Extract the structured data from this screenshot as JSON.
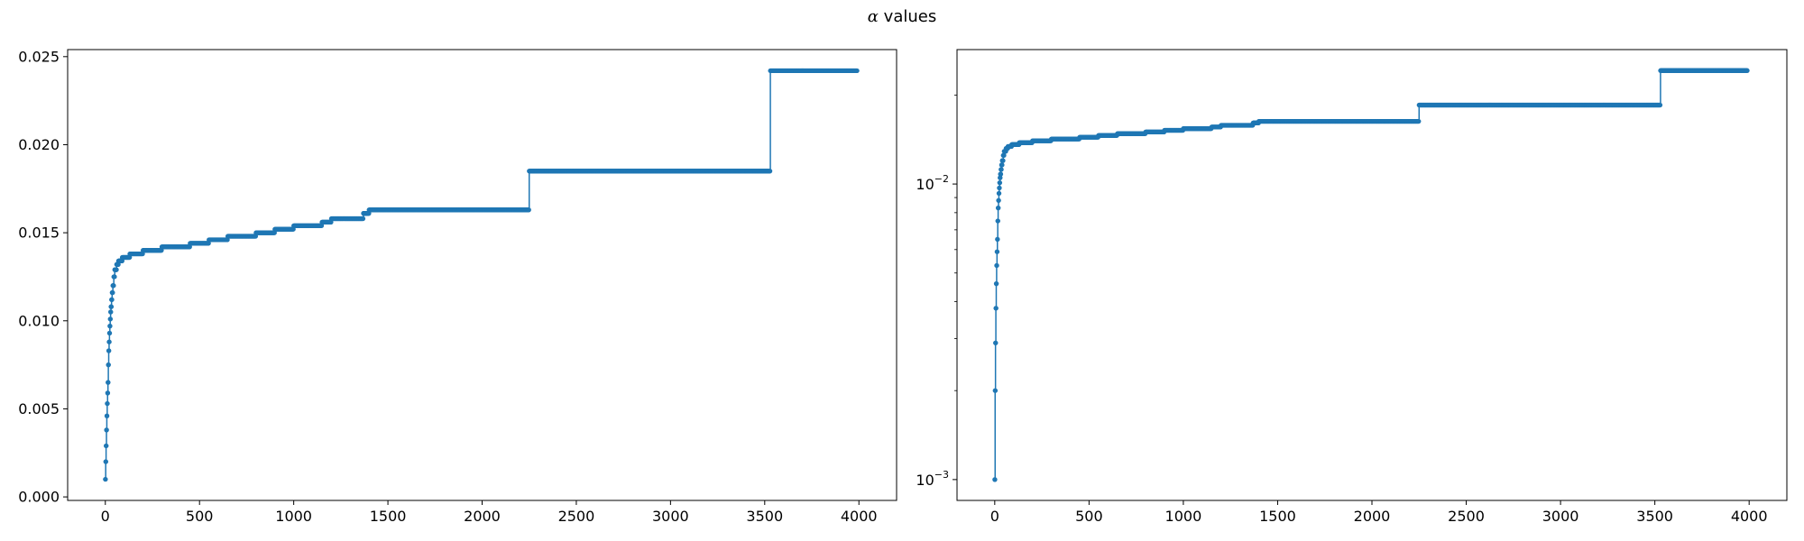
{
  "figure": {
    "title_symbol": "α",
    "title_text": "values"
  },
  "colors": {
    "series": "#1f77b4",
    "axes": "#000000",
    "background": "#ffffff"
  },
  "chart_data": [
    {
      "type": "line",
      "marker": "dot",
      "grid": false,
      "legend": null,
      "xlim": [
        -200,
        4200
      ],
      "ylim": [
        -0.0002,
        0.0254
      ],
      "yscale": "linear",
      "x_ticks": [
        0,
        500,
        1000,
        1500,
        2000,
        2500,
        3000,
        3500,
        4000
      ],
      "x_tick_labels": [
        "0",
        "500",
        "1000",
        "1500",
        "2000",
        "2500",
        "3000",
        "3500",
        "4000"
      ],
      "y_ticks": [
        0.0,
        0.005,
        0.01,
        0.015,
        0.02,
        0.025
      ],
      "y_tick_labels": [
        "0.000",
        "0.005",
        "0.010",
        "0.015",
        "0.020",
        "0.025"
      ],
      "steps": [
        [
          0,
          0.001
        ],
        [
          2,
          0.002
        ],
        [
          4,
          0.0029
        ],
        [
          6,
          0.0038
        ],
        [
          8,
          0.0046
        ],
        [
          10,
          0.0053
        ],
        [
          12,
          0.0059
        ],
        [
          14,
          0.0065
        ],
        [
          16,
          0.0075
        ],
        [
          18,
          0.0083
        ],
        [
          20,
          0.0088
        ],
        [
          22,
          0.0093
        ],
        [
          24,
          0.0097
        ],
        [
          26,
          0.0101
        ],
        [
          28,
          0.0105
        ],
        [
          30,
          0.0108
        ],
        [
          33,
          0.0112
        ],
        [
          36,
          0.0116
        ],
        [
          40,
          0.012
        ],
        [
          45,
          0.0125
        ],
        [
          50,
          0.0129
        ],
        [
          60,
          0.0132
        ],
        [
          70,
          0.0134
        ],
        [
          90,
          0.0136
        ],
        [
          130,
          0.0138
        ],
        [
          200,
          0.014
        ],
        [
          300,
          0.0142
        ],
        [
          450,
          0.0144
        ],
        [
          550,
          0.0146
        ],
        [
          650,
          0.0148
        ],
        [
          800,
          0.015
        ],
        [
          900,
          0.0152
        ],
        [
          1000,
          0.0154
        ],
        [
          1150,
          0.0156
        ],
        [
          1200,
          0.0158
        ],
        [
          1370,
          0.0161
        ],
        [
          1400,
          0.0163
        ],
        [
          2250,
          0.0185
        ],
        [
          3530,
          0.0242
        ],
        [
          3990,
          0.0242
        ]
      ]
    },
    {
      "type": "line",
      "marker": "dot",
      "grid": false,
      "legend": null,
      "xlim": [
        -200,
        4200
      ],
      "ylim": [
        0.00085,
        0.0285
      ],
      "yscale": "log",
      "x_ticks": [
        0,
        500,
        1000,
        1500,
        2000,
        2500,
        3000,
        3500,
        4000
      ],
      "x_tick_labels": [
        "0",
        "500",
        "1000",
        "1500",
        "2000",
        "2500",
        "3000",
        "3500",
        "4000"
      ],
      "y_major_ticks": [
        0.001,
        0.01
      ],
      "y_major_tick_labels": [
        {
          "base": "10",
          "exp": "−3"
        },
        {
          "base": "10",
          "exp": "−2"
        }
      ],
      "y_minor_ticks": [
        0.002,
        0.003,
        0.004,
        0.005,
        0.006,
        0.007,
        0.008,
        0.009,
        0.02
      ],
      "steps_ref": 0
    }
  ]
}
